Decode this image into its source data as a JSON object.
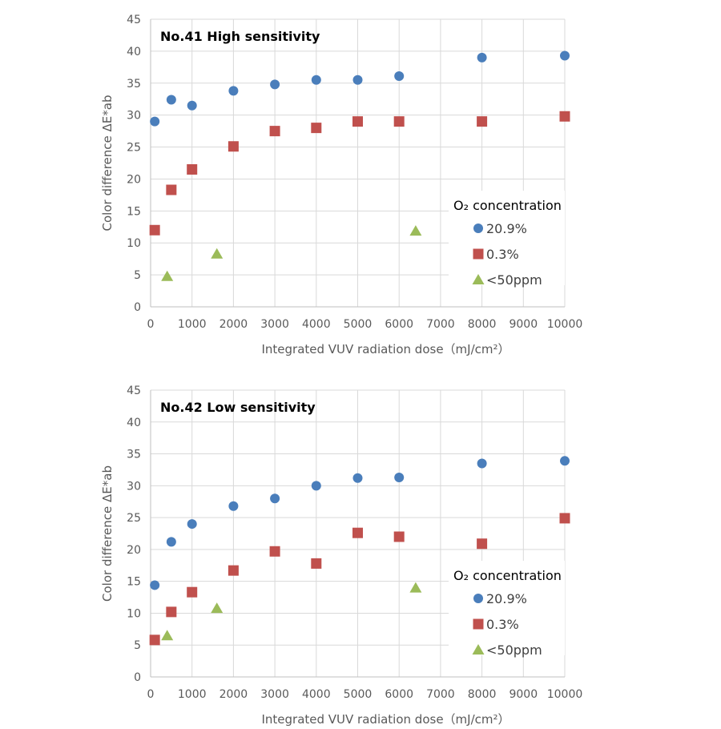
{
  "chart_data": [
    {
      "type": "scatter",
      "title": "No.41 High sensitivity",
      "xlabel": "Integrated VUV radiation dose（mJ/cm²）",
      "ylabel": "Color difference ΔE*ab",
      "xlim": [
        0,
        10000
      ],
      "ylim": [
        0,
        45
      ],
      "xticks": [
        "0",
        "1000",
        "2000",
        "3000",
        "4000",
        "5000",
        "6000",
        "7000",
        "8000",
        "9000",
        "10000"
      ],
      "yticks": [
        "0",
        "5",
        "10",
        "15",
        "20",
        "25",
        "30",
        "35",
        "40",
        "45"
      ],
      "grid": true,
      "legend": {
        "title": "O₂ concentration",
        "position": "right"
      },
      "series": [
        {
          "name": "20.9%",
          "marker": "circle",
          "color": "#4a7ebb",
          "x": [
            100,
            500,
            1000,
            2000,
            3000,
            4000,
            5000,
            6000,
            8000,
            10000
          ],
          "y": [
            29.0,
            32.4,
            31.5,
            33.8,
            34.8,
            35.5,
            35.5,
            36.1,
            39.0,
            39.3
          ]
        },
        {
          "name": "0.3%",
          "marker": "square",
          "color": "#c0504d",
          "x": [
            100,
            500,
            1000,
            2000,
            3000,
            4000,
            5000,
            6000,
            8000,
            10000
          ],
          "y": [
            12.0,
            18.3,
            21.5,
            25.1,
            27.5,
            28.0,
            29.0,
            29.0,
            29.0,
            29.8
          ]
        },
        {
          "name": "<50ppm",
          "marker": "triangle",
          "color": "#9bbb59",
          "x": [
            400,
            1600,
            6400
          ],
          "y": [
            4.8,
            8.3,
            11.9
          ]
        }
      ]
    },
    {
      "type": "scatter",
      "title": "No.42 Low sensitivity",
      "xlabel": "Integrated VUV radiation dose（mJ/cm²）",
      "ylabel": "Color difference ΔE*ab",
      "xlim": [
        0,
        10000
      ],
      "ylim": [
        0,
        45
      ],
      "xticks": [
        "0",
        "1000",
        "2000",
        "3000",
        "4000",
        "5000",
        "6000",
        "7000",
        "8000",
        "9000",
        "10000"
      ],
      "yticks": [
        "0",
        "5",
        "10",
        "15",
        "20",
        "25",
        "30",
        "35",
        "40",
        "45"
      ],
      "grid": true,
      "legend": {
        "title": "O₂ concentration",
        "position": "right"
      },
      "series": [
        {
          "name": "20.9%",
          "marker": "circle",
          "color": "#4a7ebb",
          "x": [
            100,
            500,
            1000,
            2000,
            3000,
            4000,
            5000,
            6000,
            8000,
            10000
          ],
          "y": [
            14.4,
            21.2,
            24.0,
            26.8,
            28.0,
            30.0,
            31.2,
            31.3,
            33.5,
            33.9
          ]
        },
        {
          "name": "0.3%",
          "marker": "square",
          "color": "#c0504d",
          "x": [
            100,
            500,
            1000,
            2000,
            3000,
            4000,
            5000,
            6000,
            8000,
            10000
          ],
          "y": [
            5.8,
            10.2,
            13.3,
            16.7,
            19.7,
            17.8,
            22.6,
            22.0,
            20.9,
            24.9
          ]
        },
        {
          "name": "<50ppm",
          "marker": "triangle",
          "color": "#9bbb59",
          "x": [
            400,
            1600,
            6400
          ],
          "y": [
            6.5,
            10.8,
            14.0
          ]
        }
      ]
    }
  ]
}
